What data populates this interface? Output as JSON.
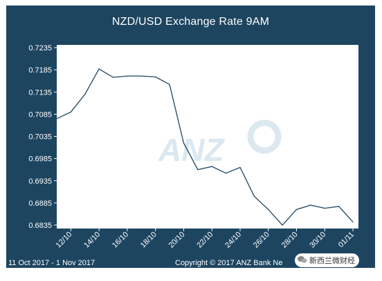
{
  "header": {
    "title": "NZD/USD Exchange Rate  9AM"
  },
  "footer": {
    "date_range": "11 Oct 2017 - 1 Nov 2017",
    "copyright": "Copyright © 2017 ANZ Bank Ne",
    "wechat_label": "新西兰微财经"
  },
  "watermark": {
    "text": "ANZ"
  },
  "colors": {
    "frame": "#1d4560",
    "plot_bg": "#ffffff",
    "line": "#1d4560",
    "watermark": "#dce8f0"
  },
  "icons": {
    "wechat": "wechat-icon"
  },
  "chart_data": {
    "type": "line",
    "title": "NZD/USD Exchange Rate  9AM",
    "xlabel": "",
    "ylabel": "",
    "ylim": [
      0.6835,
      0.7235
    ],
    "grid": false,
    "y_ticks": [
      "0.7235",
      "0.7185",
      "0.7135",
      "0.7085",
      "0.7035",
      "0.6985",
      "0.6935",
      "0.6885",
      "0.6835"
    ],
    "x_ticks": [
      "12/10",
      "14/10",
      "16/10",
      "18/10",
      "20/10",
      "22/10",
      "24/10",
      "26/10",
      "28/10",
      "30/10",
      "01/11"
    ],
    "x": [
      "11/10",
      "12/10",
      "13/10",
      "14/10",
      "15/10",
      "16/10",
      "17/10",
      "18/10",
      "19/10",
      "20/10",
      "21/10",
      "22/10",
      "23/10",
      "24/10",
      "25/10",
      "26/10",
      "27/10",
      "28/10",
      "29/10",
      "30/10",
      "31/10",
      "01/11"
    ],
    "values": [
      0.7075,
      0.709,
      0.713,
      0.7187,
      0.7168,
      0.7171,
      0.7171,
      0.7169,
      0.7152,
      0.702,
      0.696,
      0.6967,
      0.6952,
      0.6965,
      0.69,
      0.687,
      0.6835,
      0.687,
      0.688,
      0.6873,
      0.6877,
      0.6842
    ]
  }
}
